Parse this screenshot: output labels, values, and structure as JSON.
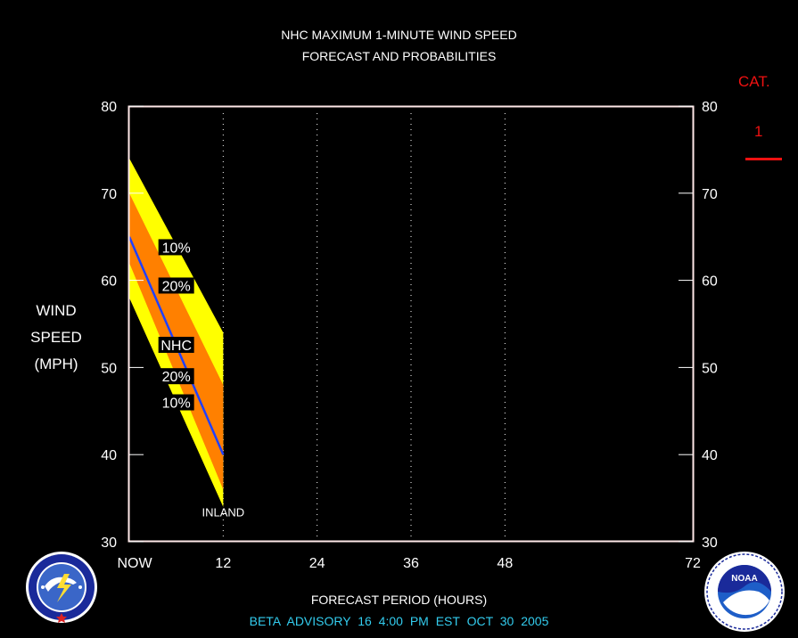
{
  "header": {
    "title_line1": "NHC MAXIMUM 1-MINUTE WIND SPEED",
    "title_line2": "FORECAST AND PROBABILITIES"
  },
  "y_axis_label": [
    "WIND",
    "SPEED",
    "(MPH)"
  ],
  "x_axis_label": "FORECAST PERIOD (HOURS)",
  "advisory": "BETA   ADVISORY  16  4:00  PM  EST  OCT  30  2005",
  "category": {
    "title": "CAT.",
    "value": "1",
    "color": "#ee1111"
  },
  "logos": {
    "left": "noaa-national-weather-service-logo",
    "right": "noaa-logo",
    "right_text": "NOAA"
  },
  "colors": {
    "background": "#000000",
    "frame": "#ffe8e8",
    "ten_pct_band": "#ffff00",
    "twenty_pct_band": "#ff8000",
    "nhc_line": "#2040ff",
    "category_red": "#ee1111",
    "advisory_cyan": "#33ccee"
  },
  "chart_data": {
    "type": "area",
    "x_ticks": [
      0,
      12,
      24,
      36,
      48,
      72
    ],
    "x_tick_labels": [
      "NOW",
      "12",
      "24",
      "36",
      "48",
      "72"
    ],
    "y_ticks": [
      30,
      40,
      50,
      60,
      70,
      80
    ],
    "y_tick_labels": [
      "30",
      "40",
      "50",
      "60",
      "70",
      "80"
    ],
    "xlim": [
      0,
      72
    ],
    "ylim": [
      30,
      80
    ],
    "vertical_gridlines_at": [
      12,
      24,
      36,
      48
    ],
    "x": [
      0,
      12
    ],
    "series": [
      {
        "name": "10%",
        "kind": "band",
        "upper": [
          74,
          54
        ],
        "lower": [
          58,
          34
        ],
        "color": "#ffff00"
      },
      {
        "name": "20%",
        "kind": "band",
        "upper": [
          70,
          48
        ],
        "lower": [
          62,
          36
        ],
        "color": "#ff8000"
      },
      {
        "name": "NHC",
        "kind": "line",
        "values": [
          65,
          40
        ],
        "color": "#2040ff"
      }
    ],
    "band_labels": [
      {
        "text": "10%",
        "x": 6,
        "y": 63.8
      },
      {
        "text": "20%",
        "x": 6,
        "y": 59.4
      },
      {
        "text": "NHC",
        "x": 6,
        "y": 52.6
      },
      {
        "text": "20%",
        "x": 6,
        "y": 49.0
      },
      {
        "text": "10%",
        "x": 6,
        "y": 46.0
      }
    ],
    "annotations": [
      {
        "text": "INLAND",
        "x": 12,
        "y": 33.4
      }
    ]
  }
}
